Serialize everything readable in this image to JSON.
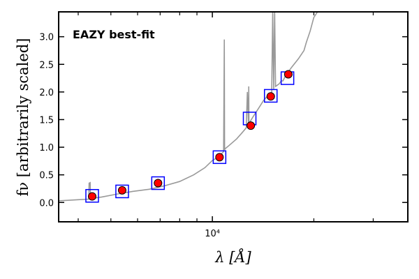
{
  "chart_data": {
    "type": "scatter",
    "xscale": "log",
    "xlim": [
      3500,
      38000
    ],
    "ylim": [
      -0.35,
      3.45
    ],
    "yticks": [
      0.0,
      0.5,
      1.0,
      1.5,
      2.0,
      2.5,
      3.0
    ],
    "ytick_labels": [
      "0.0",
      "0.5",
      "1.0",
      "1.5",
      "2.0",
      "2.5",
      "3.0"
    ],
    "xtick_major": [
      10000
    ],
    "xtick_major_labels": [
      "10⁴"
    ],
    "xtick_minor": [
      4000,
      5000,
      6000,
      7000,
      8000,
      9000,
      20000,
      30000
    ],
    "xlabel": "λ [Å]",
    "ylabel": "fν [arbitrarily scaled]",
    "annotation": "EAZY best-fit",
    "annotation_color": "#ff0000",
    "grid": false,
    "series": [
      {
        "kind": "model",
        "color": "#999999",
        "x": [
          3500,
          4000,
          4300,
          4310,
          4340,
          4350,
          4700,
          5200,
          5800,
          6500,
          7200,
          8000,
          8800,
          9500,
          10000,
          10400,
          10800,
          10850,
          10870,
          10900,
          11200,
          11800,
          12200,
          12600,
          12700,
          12800,
          12820,
          12840,
          12900,
          13200,
          13700,
          14200,
          14700,
          15000,
          15100,
          15200,
          15300,
          15400,
          15800,
          16000,
          16200,
          16500,
          17200,
          18000,
          18700,
          19000,
          19500,
          20000,
          20500
        ],
        "y": [
          0.03,
          0.05,
          0.06,
          0.35,
          0.36,
          0.07,
          0.1,
          0.15,
          0.2,
          0.24,
          0.3,
          0.38,
          0.5,
          0.63,
          0.76,
          0.82,
          0.92,
          2.95,
          0.95,
          0.97,
          1.03,
          1.15,
          1.25,
          1.35,
          2.0,
          1.4,
          2.1,
          1.42,
          1.45,
          1.55,
          1.7,
          1.85,
          1.95,
          2.0,
          3.45,
          2.05,
          3.45,
          2.1,
          2.15,
          2.2,
          2.2,
          2.3,
          2.45,
          2.6,
          2.75,
          2.9,
          3.1,
          3.35,
          3.45
        ]
      },
      {
        "kind": "model photometry",
        "marker": "square",
        "color": "#0000ff",
        "x": [
          4400,
          5400,
          6900,
          10500,
          12900,
          14900,
          16700
        ],
        "y": [
          0.12,
          0.2,
          0.35,
          0.82,
          1.52,
          1.93,
          2.25
        ]
      },
      {
        "kind": "observed photometry",
        "marker": "circle",
        "color": "#ff0000",
        "x": [
          4400,
          5400,
          6900,
          10500,
          13000,
          14900,
          16800
        ],
        "y": [
          0.11,
          0.22,
          0.35,
          0.82,
          1.39,
          1.92,
          2.32
        ]
      }
    ]
  }
}
